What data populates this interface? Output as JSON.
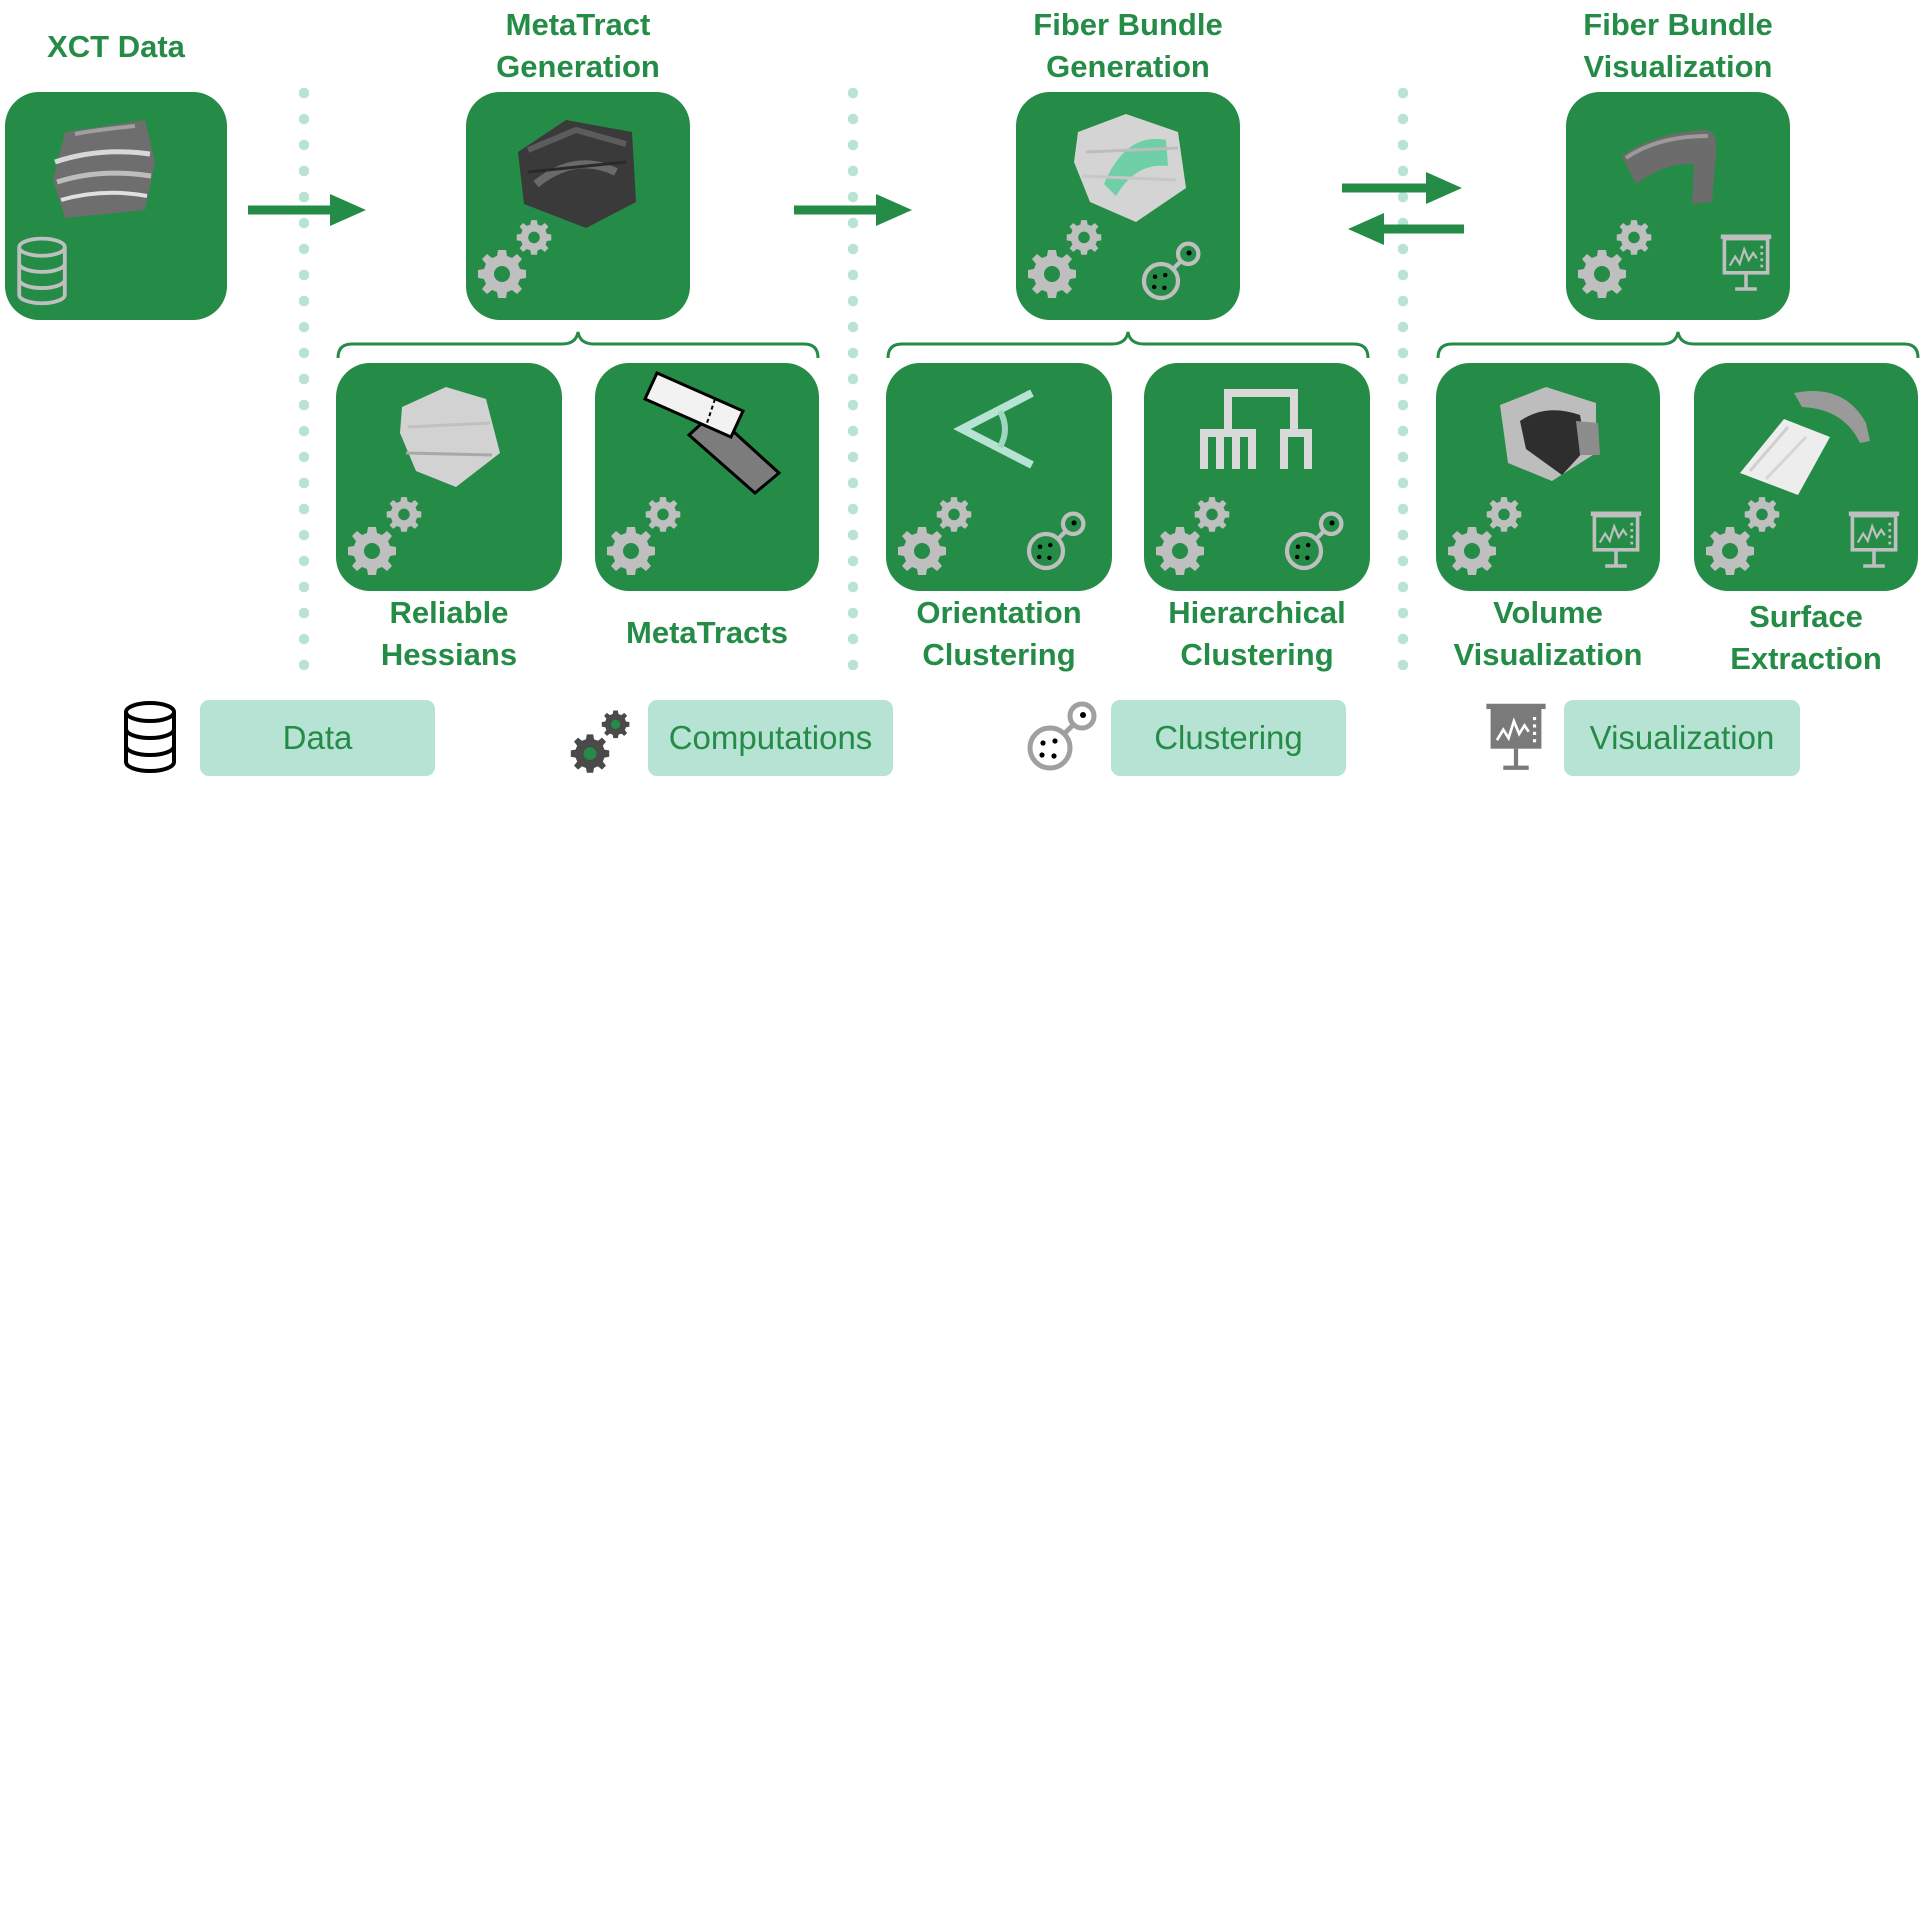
{
  "stages": {
    "xct": {
      "title": "XCT Data"
    },
    "metatract": {
      "title_line1": "MetaTract",
      "title_line2": "Generation"
    },
    "bundle_gen": {
      "title_line1": "Fiber Bundle",
      "title_line2": "Generation"
    },
    "bundle_vis": {
      "title_line1": "Fiber Bundle",
      "title_line2": "Visualization"
    }
  },
  "substeps": {
    "reliable_hessians": {
      "line1": "Reliable",
      "line2": "Hessians"
    },
    "metatracts": {
      "line1": "MetaTracts"
    },
    "orientation_clustering": {
      "line1": "Orientation",
      "line2": "Clustering"
    },
    "hierarchical_clustering": {
      "line1": "Hierarchical",
      "line2": "Clustering"
    },
    "volume_visualization": {
      "line1": "Volume",
      "line2": "Visualization"
    },
    "surface_extraction": {
      "line1": "Surface",
      "line2": "Extraction"
    }
  },
  "legend": {
    "data": "Data",
    "computations": "Computations",
    "clustering": "Clustering",
    "visualization": "Visualization"
  },
  "colors": {
    "primary_green": "#248c46",
    "light_mint": "#b7e3d5",
    "divider_dots": "#b9e3d6",
    "icon_gray": "#bfbfbf"
  },
  "icons": [
    "database-icon",
    "gears-icon",
    "cluster-icon",
    "presentation-chart-icon",
    "dendrogram-icon",
    "angle-icon"
  ]
}
